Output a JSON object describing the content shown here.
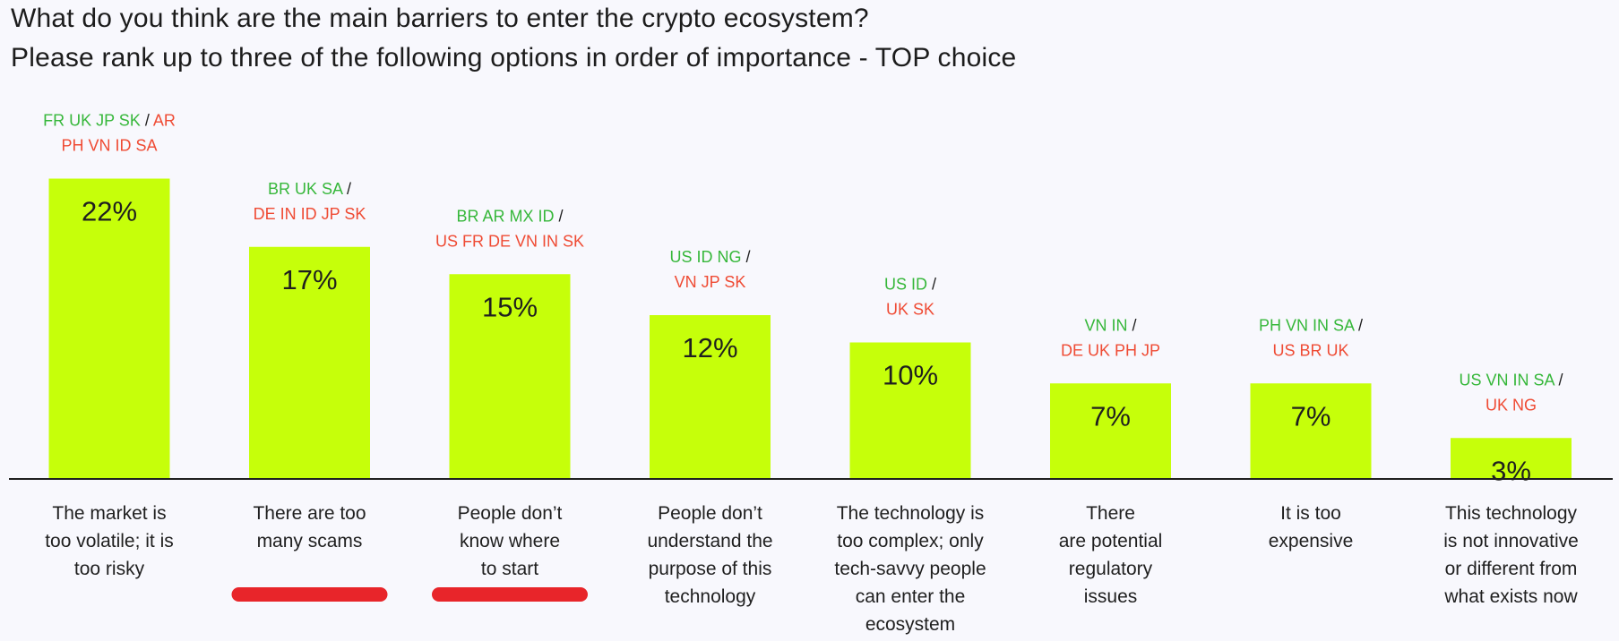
{
  "title_line1": "What do you think are the main barriers to enter the crypto ecosystem?",
  "title_line2": "Please rank up to three of the following options in order of importance - TOP choice",
  "colors": {
    "bar": "#c6ff0a",
    "positive_text": "#36b73a",
    "negative_text": "#ef4b34",
    "highlight_underline": "#e8252a",
    "axis": "#1f1f1f"
  },
  "chart_data": {
    "type": "bar",
    "title": "What do you think are the main barriers to enter the crypto ecosystem? Please rank up to three of the following options in order of importance - TOP choice",
    "xlabel": "",
    "ylabel": "",
    "value_unit": "%",
    "ylim": [
      0,
      22
    ],
    "grid": false,
    "legend": "none",
    "categories": [
      [
        "The market is",
        "too volatile; it is",
        "too risky"
      ],
      [
        "There are too",
        "many scams"
      ],
      [
        "People don’t",
        "know where",
        "to start"
      ],
      [
        "People don’t",
        "understand the",
        "purpose of this",
        "technology"
      ],
      [
        "The technology is",
        "too complex; only",
        "tech-savvy people",
        "can enter the",
        "ecosystem"
      ],
      [
        "There",
        "are potential",
        "regulatory",
        "issues"
      ],
      [
        "It is too",
        "expensive"
      ],
      [
        "This technology",
        "is not innovative",
        "or different from",
        "what exists now"
      ]
    ],
    "values": [
      22,
      17,
      15,
      12,
      10,
      7,
      7,
      3
    ],
    "value_labels": [
      "22%",
      "17%",
      "15%",
      "12%",
      "10%",
      "7%",
      "7%",
      "3%"
    ],
    "highlighted": [
      false,
      true,
      true,
      false,
      false,
      false,
      false,
      false
    ],
    "annotations": [
      [
        [
          [
            "FR UK JP SK",
            "pos"
          ],
          [
            " / ",
            "sep"
          ],
          [
            "AR",
            "neg"
          ]
        ],
        [
          [
            "PH VN ID SA",
            "neg"
          ]
        ]
      ],
      [
        [
          [
            "BR UK SA",
            "pos"
          ],
          [
            " /",
            "sep"
          ]
        ],
        [
          [
            "DE IN ID JP SK",
            "neg"
          ]
        ]
      ],
      [
        [
          [
            "BR AR MX ID",
            "pos"
          ],
          [
            " /",
            "sep"
          ]
        ],
        [
          [
            "US FR DE VN IN SK",
            "neg"
          ]
        ]
      ],
      [
        [
          [
            "US ID NG",
            "pos"
          ],
          [
            " /",
            "sep"
          ]
        ],
        [
          [
            "VN JP SK",
            "neg"
          ]
        ]
      ],
      [
        [
          [
            "US ID",
            "pos"
          ],
          [
            " /",
            "sep"
          ]
        ],
        [
          [
            "UK SK",
            "neg"
          ]
        ]
      ],
      [
        [
          [
            "VN IN",
            "pos"
          ],
          [
            " /",
            "sep"
          ]
        ],
        [
          [
            "DE UK PH JP",
            "neg"
          ]
        ]
      ],
      [
        [
          [
            "PH VN IN SA",
            "pos"
          ],
          [
            " /",
            "sep"
          ]
        ],
        [
          [
            "US BR UK",
            "neg"
          ]
        ]
      ],
      [
        [
          [
            "US VN IN SA",
            "pos"
          ],
          [
            " /",
            "sep"
          ]
        ],
        [
          [
            "UK NG",
            "neg"
          ]
        ]
      ]
    ]
  }
}
